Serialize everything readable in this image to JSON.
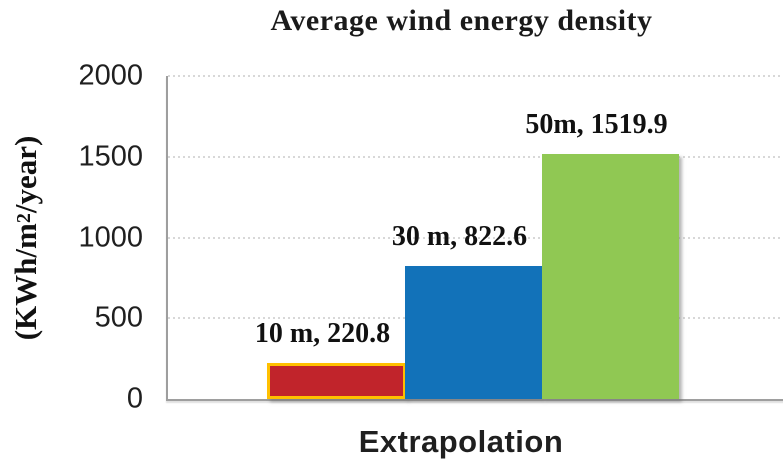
{
  "chart_data": {
    "type": "bar",
    "title": "Average wind energy density",
    "xlabel": "Extrapolation",
    "ylabel": {
      "pre": "(KWh/m",
      "sup": "2",
      "post": "/year)"
    },
    "categories": [
      "10 m",
      "30 m",
      "50m"
    ],
    "values": [
      220.8,
      822.6,
      1519.9
    ],
    "bar_labels": [
      "10 m, 220.8",
      "30 m, 822.6",
      "50m, 1519.9"
    ],
    "ytick_labels": [
      "0",
      "500",
      "1000",
      "1500",
      "2000"
    ],
    "ylim": [
      0,
      2000
    ],
    "grid": "horizontal-dotted",
    "legend_position": "none",
    "colors": {
      "bars": [
        "#c1242b",
        "#1272b9",
        "#90c853"
      ],
      "bar1_outline": "#ffc000",
      "gridline": "#d8d8d8",
      "axis": "#9e9e9e",
      "text": "#1a1a1a"
    }
  }
}
